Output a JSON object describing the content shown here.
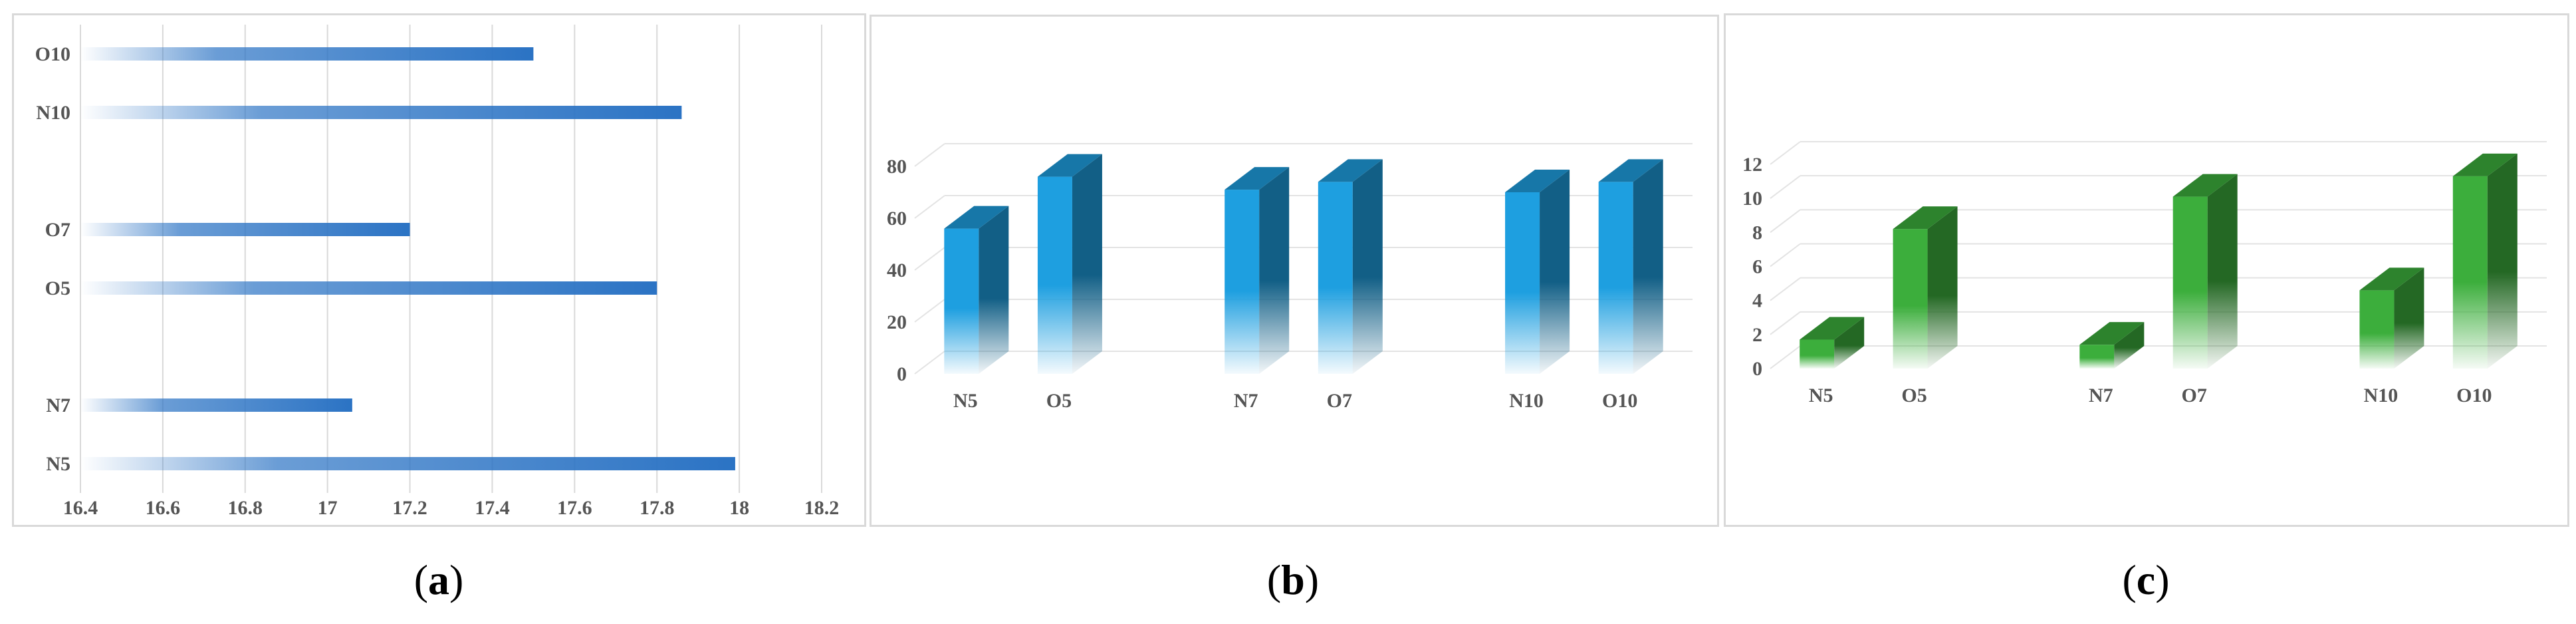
{
  "panels": {
    "a": {
      "caption_letter": "a"
    },
    "b": {
      "caption_letter": "b"
    },
    "c": {
      "caption_letter": "c"
    }
  },
  "chart_data": [
    {
      "type": "bar",
      "orientation": "horizontal",
      "categories": [
        "O10",
        "N10",
        "",
        "O7",
        "O5",
        "",
        "N7",
        "N5"
      ],
      "values": [
        17.5,
        17.86,
        null,
        17.2,
        17.8,
        null,
        17.06,
        17.99
      ],
      "xlim": [
        16.4,
        18.2
      ],
      "xticks": [
        "16.4",
        "16.6",
        "16.8",
        "17",
        "17.2",
        "17.4",
        "17.6",
        "17.8",
        "18",
        "18.2"
      ],
      "grid": "vertical",
      "bar_color": "#2b73c4"
    },
    {
      "type": "bar",
      "style": "3d-column",
      "categories": [
        "N5",
        "O5",
        "",
        "N7",
        "O7",
        "",
        "N10",
        "O10"
      ],
      "values": [
        56,
        76,
        null,
        71,
        74,
        null,
        70,
        74
      ],
      "ylim": [
        0,
        80
      ],
      "yticks": [
        "0",
        "20",
        "40",
        "60",
        "80"
      ],
      "grid": "horizontal",
      "bar_color": "#1e9fe0"
    },
    {
      "type": "bar",
      "style": "3d-column",
      "categories": [
        "N5",
        "O5",
        "",
        "N7",
        "O7",
        "",
        "N10",
        "O10"
      ],
      "values": [
        1.7,
        8.2,
        null,
        1.4,
        10.1,
        null,
        4.6,
        11.3
      ],
      "ylim": [
        0,
        12
      ],
      "yticks": [
        "0",
        "2",
        "4",
        "6",
        "8",
        "10",
        "12"
      ],
      "grid": "horizontal",
      "bar_color": "#3cae3c"
    }
  ]
}
